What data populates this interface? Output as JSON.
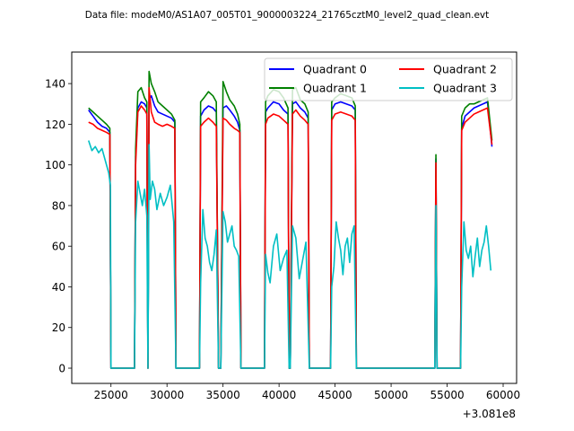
{
  "chart_data": {
    "type": "line",
    "title": "Data file: modeM0/AS1A07_005T01_9000003224_21765cztM0_level2_quad_clean.evt",
    "xlabel": "",
    "ylabel": "",
    "x_offset_label": "+3.081e8",
    "xlim": [
      21500,
      61200
    ],
    "ylim": [
      -7.5,
      155.5
    ],
    "x_ticks": [
      25000,
      30000,
      35000,
      40000,
      45000,
      50000,
      55000,
      60000
    ],
    "x_tick_labels": [
      "25000",
      "30000",
      "35000",
      "40000",
      "45000",
      "50000",
      "55000",
      "60000"
    ],
    "y_ticks": [
      0,
      20,
      40,
      60,
      80,
      100,
      120,
      140
    ],
    "y_tick_labels": [
      "0",
      "20",
      "40",
      "60",
      "80",
      "100",
      "120",
      "140"
    ],
    "grid": false,
    "legend_position": "top-right",
    "series": [
      {
        "name": "Quadrant 0",
        "color": "#0000ff",
        "x": [
          23000,
          23400,
          23800,
          24200,
          24600,
          24900,
          25000,
          27100,
          27200,
          27400,
          27700,
          28000,
          28200,
          28300,
          28400,
          28600,
          28900,
          29200,
          29600,
          30000,
          30400,
          30700,
          30800,
          32900,
          33000,
          33300,
          33700,
          34100,
          34400,
          34600,
          34800,
          35000,
          35300,
          35600,
          36000,
          36300,
          36500,
          36600,
          38700,
          38800,
          39000,
          39500,
          40000,
          40400,
          40800,
          40900,
          41000,
          41200,
          41500,
          41900,
          42300,
          42600,
          42700,
          44600,
          44700,
          45000,
          45500,
          46000,
          46500,
          46800,
          46900,
          53900,
          54000,
          54100,
          56200,
          56300,
          56600,
          57000,
          57400,
          57800,
          58200,
          58600,
          59000
        ],
        "y": [
          127,
          124,
          121,
          119,
          118,
          116,
          0,
          0,
          104,
          128,
          131,
          130,
          128,
          0,
          132,
          134,
          129,
          126,
          125,
          124,
          123,
          121,
          0,
          0,
          124,
          127,
          129,
          128,
          126,
          0,
          0,
          128,
          129,
          127,
          124,
          121,
          117,
          0,
          0,
          126,
          128,
          131,
          130,
          127,
          125,
          0,
          0,
          130,
          131,
          128,
          126,
          123,
          0,
          0,
          127,
          130,
          131,
          130,
          129,
          127,
          0,
          0,
          103,
          0,
          0,
          118,
          124,
          126,
          128,
          129,
          130,
          131,
          109
        ]
      },
      {
        "name": "Quadrant 1",
        "color": "#008000",
        "x": [
          23000,
          23400,
          23800,
          24200,
          24600,
          24900,
          25000,
          27100,
          27200,
          27400,
          27700,
          28000,
          28200,
          28300,
          28400,
          28600,
          28900,
          29200,
          29600,
          30000,
          30400,
          30700,
          30800,
          32900,
          33000,
          33300,
          33700,
          34100,
          34400,
          34600,
          34800,
          35000,
          35300,
          35600,
          36000,
          36300,
          36500,
          36600,
          38700,
          38800,
          39000,
          39500,
          40000,
          40400,
          40800,
          40900,
          41000,
          41200,
          41500,
          41900,
          42300,
          42600,
          42700,
          44600,
          44700,
          45000,
          45500,
          46000,
          46500,
          46800,
          46900,
          53900,
          54000,
          54100,
          56200,
          56300,
          56600,
          57000,
          57400,
          57800,
          58200,
          58600,
          59000
        ],
        "y": [
          128,
          126,
          124,
          122,
          120,
          118,
          0,
          0,
          108,
          136,
          138,
          133,
          131,
          0,
          146,
          140,
          136,
          131,
          129,
          127,
          125,
          122,
          0,
          0,
          131,
          133,
          136,
          134,
          131,
          0,
          0,
          141,
          136,
          132,
          129,
          125,
          120,
          0,
          0,
          131,
          134,
          137,
          136,
          133,
          128,
          0,
          0,
          137,
          138,
          132,
          130,
          126,
          0,
          0,
          131,
          133,
          135,
          134,
          133,
          129,
          0,
          0,
          105,
          0,
          0,
          124,
          128,
          130,
          130,
          131,
          132,
          133,
          112
        ]
      },
      {
        "name": "Quadrant 2",
        "color": "#ff0000",
        "x": [
          23000,
          23400,
          23800,
          24200,
          24600,
          24900,
          25000,
          27100,
          27200,
          27400,
          27700,
          28000,
          28200,
          28300,
          28400,
          28600,
          28900,
          29200,
          29600,
          30000,
          30400,
          30700,
          30800,
          32900,
          33000,
          33300,
          33700,
          34100,
          34400,
          34600,
          34800,
          35000,
          35300,
          35600,
          36000,
          36300,
          36500,
          36600,
          38700,
          38800,
          39000,
          39500,
          40000,
          40400,
          40800,
          40900,
          41000,
          41200,
          41500,
          41900,
          42300,
          42600,
          42700,
          44600,
          44700,
          45000,
          45500,
          46000,
          46500,
          46800,
          46900,
          53900,
          54000,
          54100,
          56200,
          56300,
          56600,
          57000,
          57400,
          57800,
          58200,
          58600,
          59000
        ],
        "y": [
          121,
          120,
          118,
          117,
          116,
          115,
          0,
          0,
          100,
          126,
          129,
          127,
          125,
          0,
          138,
          126,
          121,
          120,
          119,
          120,
          119,
          118,
          0,
          0,
          119,
          121,
          123,
          121,
          119,
          0,
          0,
          123,
          122,
          120,
          118,
          117,
          116,
          0,
          0,
          120,
          123,
          125,
          124,
          122,
          120,
          0,
          0,
          125,
          127,
          124,
          122,
          120,
          0,
          0,
          122,
          125,
          126,
          125,
          124,
          122,
          0,
          0,
          101,
          0,
          0,
          117,
          121,
          123,
          125,
          126,
          127,
          128,
          110
        ]
      },
      {
        "name": "Quadrant 3",
        "color": "#00bfc4",
        "x": [
          23000,
          23300,
          23600,
          23900,
          24200,
          24500,
          24800,
          24950,
          25000,
          27100,
          27200,
          27400,
          27600,
          27800,
          28000,
          28200,
          28300,
          28400,
          28500,
          28700,
          28900,
          29100,
          29400,
          29700,
          30000,
          30300,
          30600,
          30800,
          32900,
          33000,
          33200,
          33400,
          33600,
          33800,
          34000,
          34200,
          34400,
          34600,
          34800,
          35000,
          35200,
          35400,
          35600,
          35800,
          36000,
          36200,
          36400,
          36600,
          38700,
          38800,
          39000,
          39200,
          39500,
          39800,
          40100,
          40400,
          40700,
          40900,
          41000,
          41200,
          41500,
          41800,
          42100,
          42400,
          42700,
          44600,
          44700,
          44900,
          45100,
          45300,
          45500,
          45700,
          45900,
          46100,
          46300,
          46500,
          46700,
          46900,
          53900,
          54000,
          54100,
          56200,
          56300,
          56500,
          56700,
          56900,
          57100,
          57300,
          57500,
          57700,
          57900,
          58100,
          58300,
          58500,
          58700,
          58900
        ],
        "y": [
          112,
          107,
          109,
          106,
          108,
          102,
          96,
          90,
          0,
          0,
          72,
          92,
          86,
          80,
          88,
          75,
          0,
          110,
          83,
          92,
          88,
          78,
          86,
          80,
          84,
          90,
          72,
          0,
          0,
          42,
          78,
          64,
          60,
          52,
          48,
          56,
          68,
          0,
          0,
          77,
          72,
          62,
          66,
          70,
          60,
          58,
          55,
          0,
          0,
          56,
          47,
          42,
          60,
          66,
          48,
          54,
          58,
          0,
          0,
          70,
          64,
          44,
          53,
          62,
          0,
          0,
          40,
          50,
          72,
          64,
          58,
          46,
          60,
          64,
          52,
          66,
          70,
          0,
          0,
          80,
          0,
          0,
          40,
          72,
          58,
          54,
          60,
          45,
          55,
          64,
          50,
          58,
          62,
          70,
          60,
          48
        ]
      }
    ]
  }
}
